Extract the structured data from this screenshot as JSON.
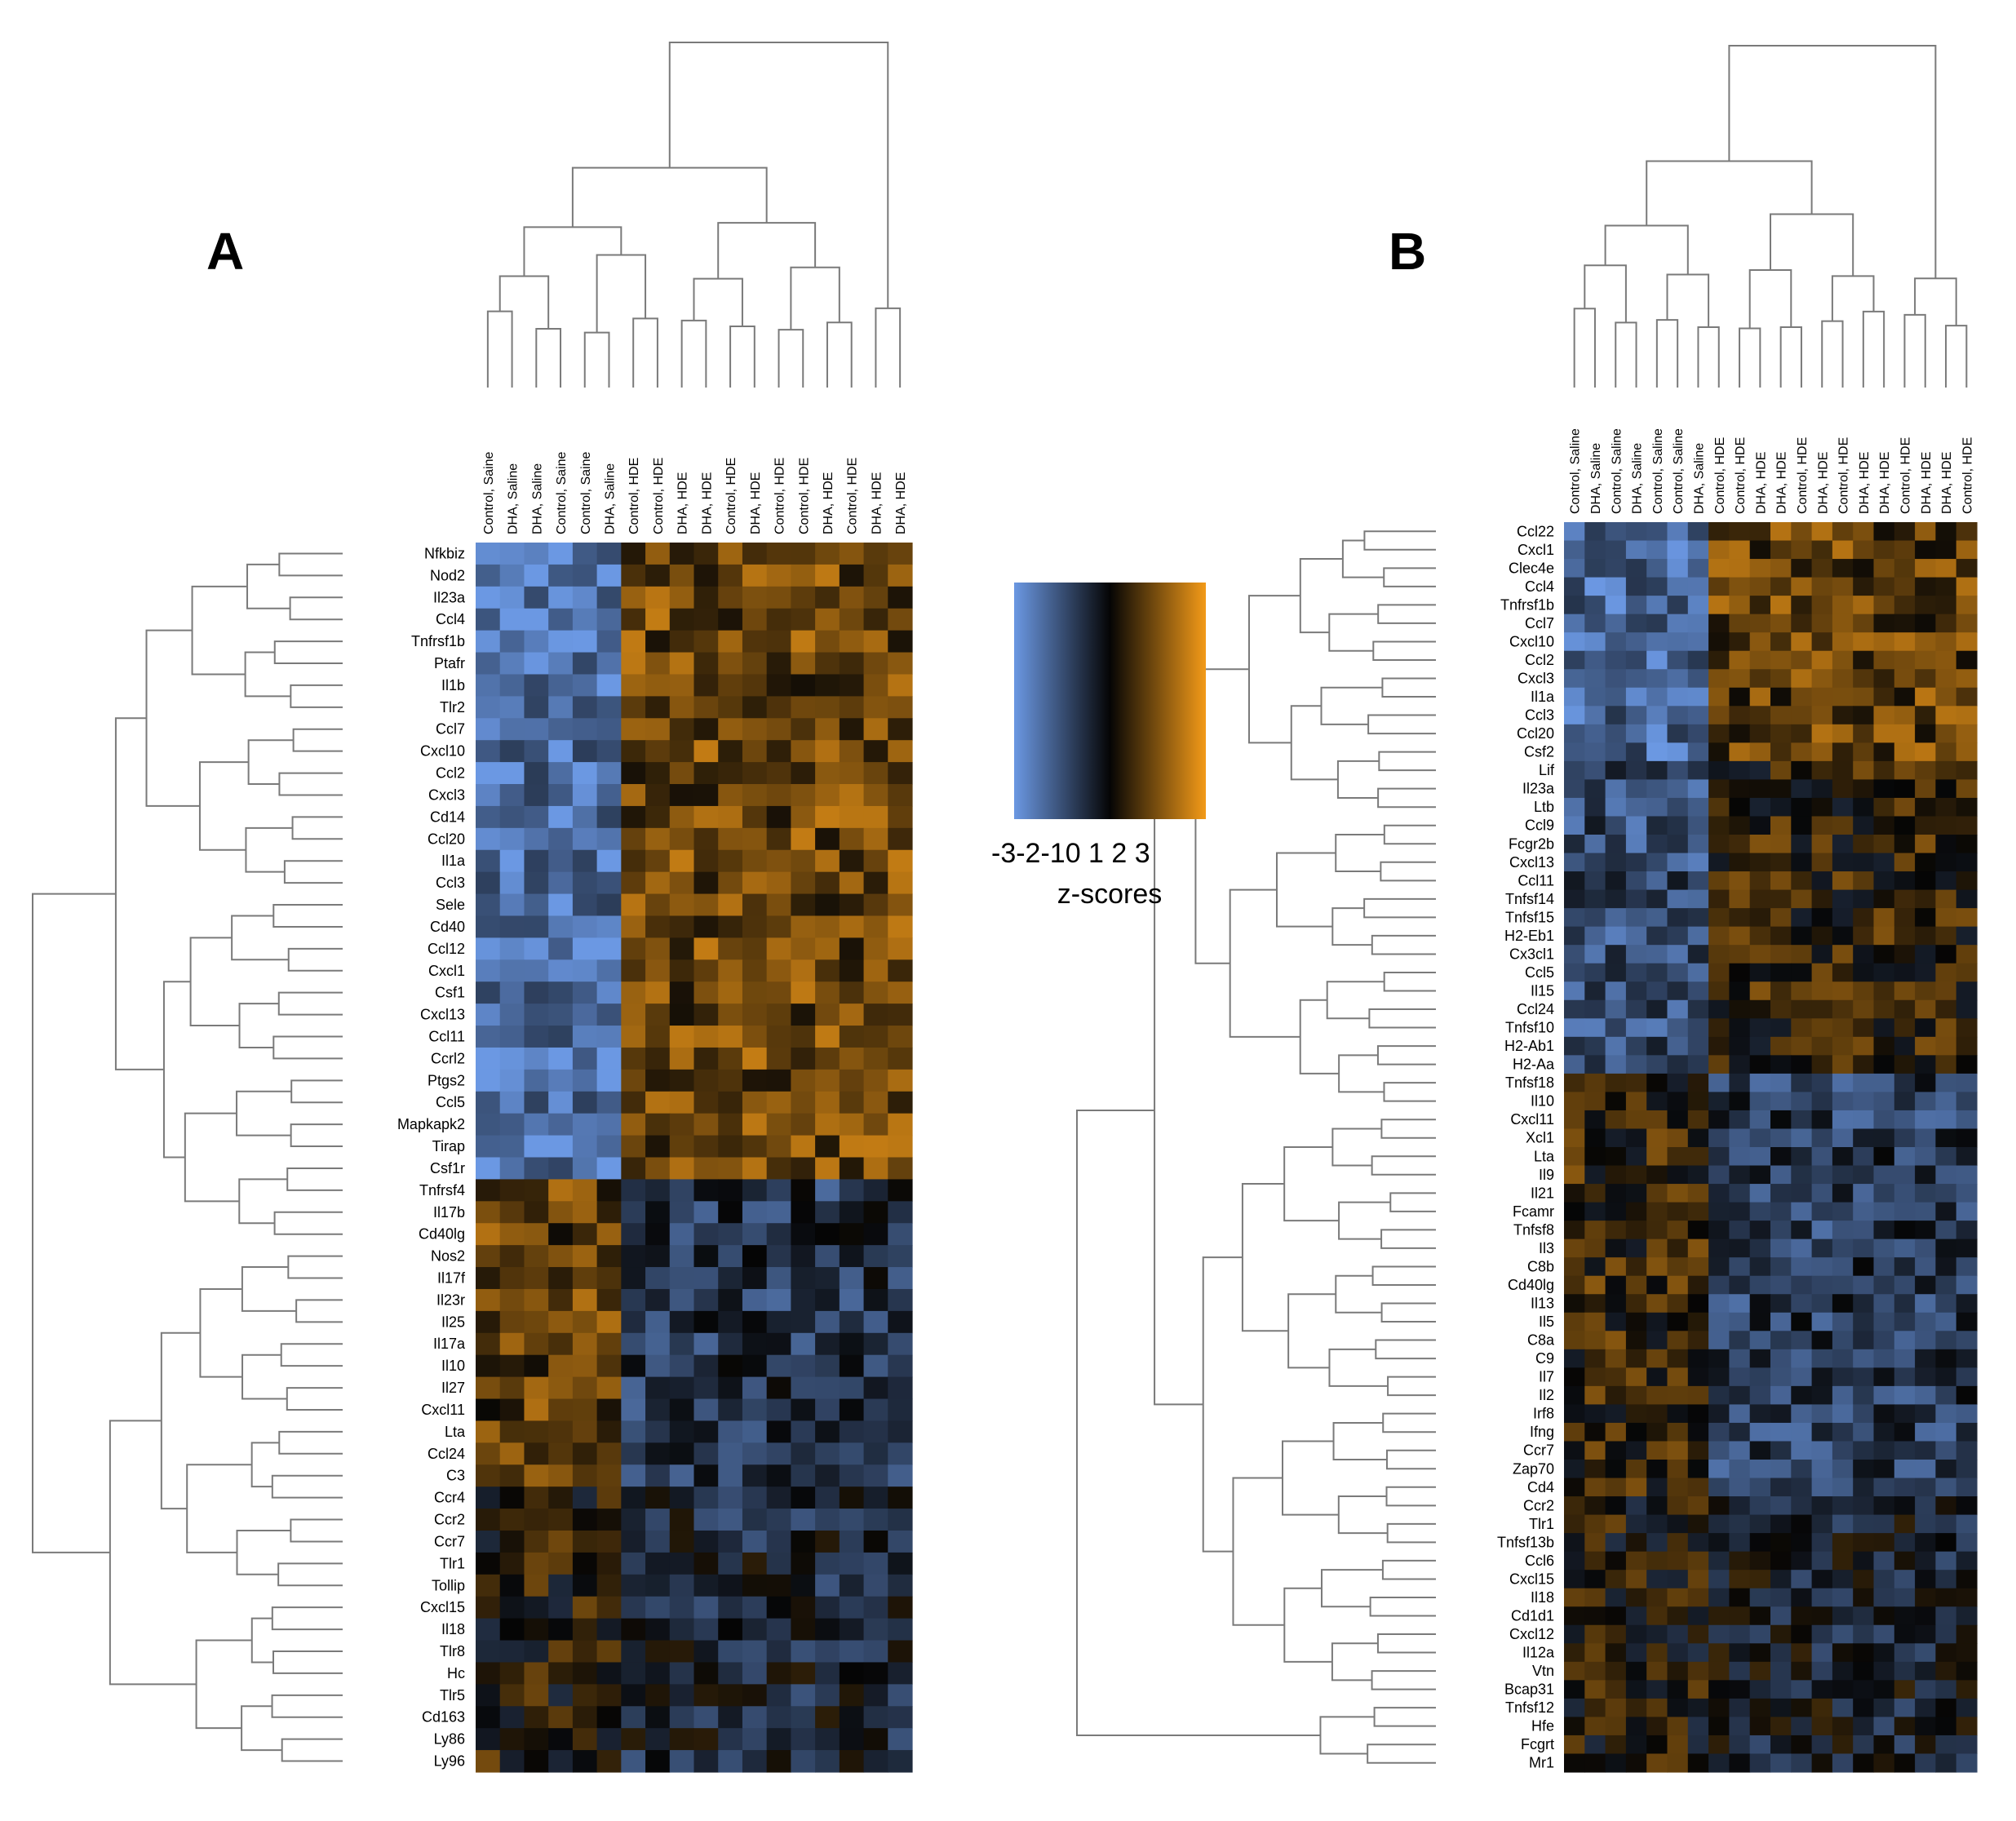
{
  "chart_data": [
    {
      "type": "heatmap",
      "panel": "A",
      "columns": [
        "Control, Saine",
        "DHA, Saline",
        "DHA, Saline",
        "Control, Saine",
        "Control, Saine",
        "DHA, Saline",
        "Control, HDE",
        "Control, HDE",
        "DHA, HDE",
        "DHA, HDE",
        "Control, HDE",
        "DHA, HDE",
        "Control, HDE",
        "Control, HDE",
        "DHA, HDE",
        "Control, HDE",
        "DHA, HDE",
        "DHA, HDE"
      ],
      "rows": [
        "Nfkbiz",
        "Nod2",
        "Il23a",
        "Ccl4",
        "Tnfrsf1b",
        "Ptafr",
        "Il1b",
        "Tlr2",
        "Ccl7",
        "Cxcl10",
        "Ccl2",
        "Cxcl3",
        "Cd14",
        "Ccl20",
        "Il1a",
        "Ccl3",
        "Sele",
        "Cd40",
        "Ccl12",
        "Cxcl1",
        "Csf1",
        "Cxcl13",
        "Ccl11",
        "Ccrl2",
        "Ptgs2",
        "Ccl5",
        "Mapkapk2",
        "Tirap",
        "Csf1r",
        "Tnfrsf4",
        "Il17b",
        "Cd40lg",
        "Nos2",
        "Il17f",
        "Il23r",
        "Il25",
        "Il17a",
        "Il10",
        "Il27",
        "Cxcl11",
        "Lta",
        "Ccl24",
        "C3",
        "Ccr4",
        "Ccr2",
        "Ccr7",
        "Tlr1",
        "Tollip",
        "Cxcl15",
        "Il18",
        "Tlr8",
        "Hc",
        "Tlr5",
        "Cd163",
        "Ly86",
        "Ly96"
      ],
      "row_group_cuts": [
        29,
        43,
        56
      ],
      "column_group_cut": 6,
      "seed": 11
    },
    {
      "type": "heatmap",
      "panel": "B",
      "columns": [
        "Control, Saline",
        "DHA, Saline",
        "Control, Saline",
        "DHA, Saline",
        "Control, Saline",
        "Control, Saline",
        "DHA, Saline",
        "Control, HDE",
        "Control, HDE",
        "DHA, HDE",
        "DHA, HDE",
        "Control, HDE",
        "DHA, HDE",
        "Control, HDE",
        "DHA, HDE",
        "DHA, HDE",
        "Control, HDE",
        "DHA, HDE",
        "DHA, HDE",
        "Control, HDE"
      ],
      "rows": [
        "Ccl22",
        "Cxcl1",
        "Clec4e",
        "Ccl4",
        "Tnfrsf1b",
        "Ccl7",
        "Cxcl10",
        "Ccl2",
        "Cxcl3",
        "Il1a",
        "Ccl3",
        "Ccl20",
        "Csf2",
        "Lif",
        "Il23a",
        "Ltb",
        "Ccl9",
        "Fcgr2b",
        "Cxcl13",
        "Ccl11",
        "Tnfsf14",
        "Tnfsf15",
        "H2-Eb1",
        "Cx3cl1",
        "Ccl5",
        "Il15",
        "Ccl24",
        "Tnfsf10",
        "H2-Ab1",
        "H2-Aa",
        "Tnfsf18",
        "Il10",
        "Cxcl11",
        "Xcl1",
        "Lta",
        "Il9",
        "Il21",
        "Fcamr",
        "Tnfsf8",
        "Il3",
        "C8b",
        "Cd40lg",
        "Il13",
        "Il5",
        "C8a",
        "C9",
        "Il7",
        "Il2",
        "Irf8",
        "Ifng",
        "Ccr7",
        "Zap70",
        "Cd4",
        "Ccr2",
        "Tlr1",
        "Tnfsf13b",
        "Ccl6",
        "Cxcl15",
        "Il18",
        "Cd1d1",
        "Cxcl12",
        "Il12a",
        "Vtn",
        "Bcap31",
        "Tnfsf12",
        "Hfe",
        "Fcgrt",
        "Mr1"
      ],
      "row_group_cuts": [
        13,
        30,
        53,
        68
      ],
      "column_group_cut": 7,
      "seed": 29
    }
  ],
  "panel_labels": {
    "a": "A",
    "b": "B"
  },
  "legend": {
    "ticks": [
      "-3",
      "-2",
      "-1",
      "0",
      "1",
      "2",
      "3"
    ],
    "tick_text": "-3-2-10 1 2 3",
    "title": "z-scores",
    "colors": {
      "low": "#6b98e3",
      "mid": "#050505",
      "high": "#f39a18"
    }
  }
}
